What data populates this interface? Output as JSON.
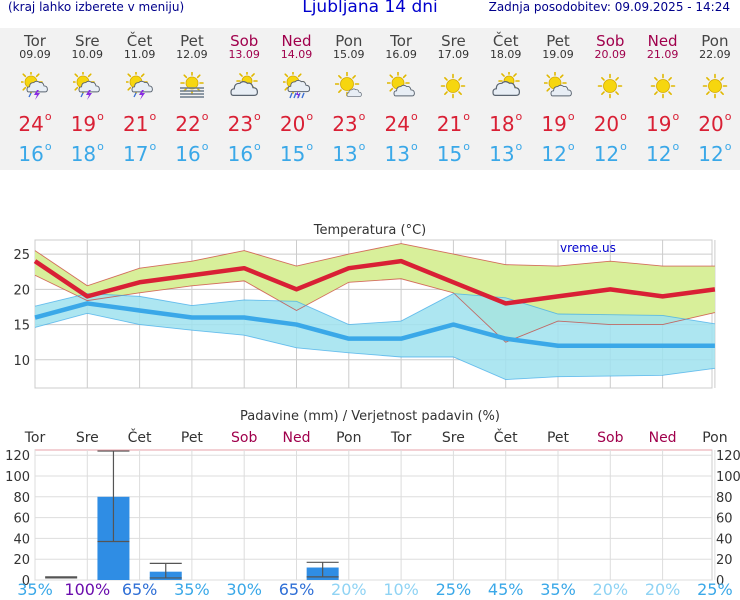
{
  "header": {
    "menu_hint": "(kraj lahko izberete v meniju)",
    "title": "Ljubljana 14 dni",
    "updated": "Zadnja posodobitev: 09.09.2025 - 14:24"
  },
  "days": [
    {
      "name": "Tor",
      "date": "09.09",
      "weekend": false,
      "icon": "sun-cloud-thunder-icon",
      "tmax": "24",
      "tmin": "16"
    },
    {
      "name": "Sre",
      "date": "10.09",
      "weekend": false,
      "icon": "sun-cloud-thunder-icon",
      "tmax": "19",
      "tmin": "18"
    },
    {
      "name": "Čet",
      "date": "11.09",
      "weekend": false,
      "icon": "sun-cloud-thunder-icon",
      "tmax": "21",
      "tmin": "17"
    },
    {
      "name": "Pet",
      "date": "12.09",
      "weekend": false,
      "icon": "sun-fog-icon",
      "tmax": "22",
      "tmin": "16"
    },
    {
      "name": "Sob",
      "date": "13.09",
      "weekend": true,
      "icon": "cloudy-icon",
      "tmax": "23",
      "tmin": "16"
    },
    {
      "name": "Ned",
      "date": "14.09",
      "weekend": true,
      "icon": "sun-cloud-rain-icon",
      "tmax": "20",
      "tmin": "15"
    },
    {
      "name": "Pon",
      "date": "15.09",
      "weekend": false,
      "icon": "sun-small-cloud-icon",
      "tmax": "23",
      "tmin": "13"
    },
    {
      "name": "Tor",
      "date": "16.09",
      "weekend": false,
      "icon": "sun-cloud-icon",
      "tmax": "24",
      "tmin": "13"
    },
    {
      "name": "Sre",
      "date": "17.09",
      "weekend": false,
      "icon": "sun-icon",
      "tmax": "21",
      "tmin": "15"
    },
    {
      "name": "Čet",
      "date": "18.09",
      "weekend": false,
      "icon": "cloudy-icon",
      "tmax": "18",
      "tmin": "13"
    },
    {
      "name": "Pet",
      "date": "19.09",
      "weekend": false,
      "icon": "sun-cloud-icon",
      "tmax": "19",
      "tmin": "12"
    },
    {
      "name": "Sob",
      "date": "20.09",
      "weekend": true,
      "icon": "sun-icon",
      "tmax": "20",
      "tmin": "12"
    },
    {
      "name": "Ned",
      "date": "21.09",
      "weekend": true,
      "icon": "sun-icon",
      "tmax": "19",
      "tmin": "12"
    },
    {
      "name": "Pon",
      "date": "22.09",
      "weekend": false,
      "icon": "sun-icon",
      "tmax": "20",
      "tmin": "12"
    }
  ],
  "degree_symbol": "o",
  "colors": {
    "max": "#d92035",
    "min": "#3aa8e8",
    "weekend": "#a0004c",
    "bar": "#2f8de4",
    "max_band": "#d8ef9a",
    "min_band": "#9fe2ef"
  },
  "chart_data": [
    {
      "type": "line",
      "title": "Temperatura (°C)",
      "watermark": "vreme.us",
      "ylim": [
        6,
        27
      ],
      "yticks": [
        10,
        15,
        20,
        25
      ],
      "grid": true,
      "series": [
        {
          "values": [
            24,
            19,
            21,
            22,
            23,
            20,
            23,
            24,
            21,
            18,
            19,
            20,
            19,
            20
          ],
          "band_high": [
            25.5,
            20.5,
            23,
            24,
            25.5,
            23.3,
            25,
            26.5,
            25,
            23.5,
            23.3,
            24,
            23.3,
            23.3
          ],
          "band_low": [
            22,
            18.4,
            19.5,
            20.5,
            21.2,
            17,
            21,
            21.5,
            19.5,
            12.5,
            15.5,
            15,
            15,
            16.7
          ]
        },
        {
          "values": [
            16,
            18,
            17,
            16,
            16,
            15,
            13,
            13,
            15,
            13,
            12,
            12,
            12,
            12
          ],
          "band_high": [
            17.6,
            19.4,
            19,
            17.7,
            18.5,
            18.3,
            15,
            15.5,
            19.4,
            18.8,
            16.5,
            16.4,
            16.3,
            15.1
          ],
          "band_low": [
            14.6,
            16.6,
            15,
            14.2,
            13.5,
            11.7,
            11,
            10.4,
            10.4,
            7.2,
            7.6,
            7.7,
            7.8,
            8.8
          ]
        }
      ]
    },
    {
      "type": "bar",
      "title": "Padavine (mm) / Verjetnost padavin (%)",
      "categories": [
        "Tor",
        "Sre",
        "Čet",
        "Pet",
        "Sob",
        "Ned",
        "Pon",
        "Tor",
        "Sre",
        "Čet",
        "Pet",
        "Sob",
        "Ned",
        "Pon"
      ],
      "category_weekend": [
        false,
        false,
        false,
        false,
        true,
        true,
        false,
        false,
        false,
        false,
        false,
        true,
        true,
        false
      ],
      "ylim": [
        0,
        125
      ],
      "yticks": [
        0,
        20,
        40,
        60,
        80,
        100,
        120
      ],
      "values": [
        0,
        80,
        8,
        0,
        0,
        12,
        0,
        0,
        0,
        0,
        0,
        0,
        0,
        0
      ],
      "range_low": [
        2,
        37,
        2,
        0,
        0,
        3,
        0,
        0,
        0,
        0,
        0,
        0,
        0,
        0
      ],
      "range_high": [
        3,
        124,
        16,
        0,
        0,
        17,
        0,
        0,
        0,
        0,
        0,
        0,
        0,
        0
      ],
      "probability": [
        "35%",
        "100%",
        "65%",
        "35%",
        "30%",
        "65%",
        "20%",
        "10%",
        "25%",
        "45%",
        "35%",
        "20%",
        "20%",
        "25%"
      ],
      "probability_colors": [
        "#3aa8e8",
        "#6a0dad",
        "#2f6fd6",
        "#3aa8e8",
        "#3aa8e8",
        "#2f6fd6",
        "#8fd3f4",
        "#8fd3f4",
        "#3aa8e8",
        "#3aa8e8",
        "#3aa8e8",
        "#8fd3f4",
        "#8fd3f4",
        "#3aa8e8"
      ]
    }
  ]
}
